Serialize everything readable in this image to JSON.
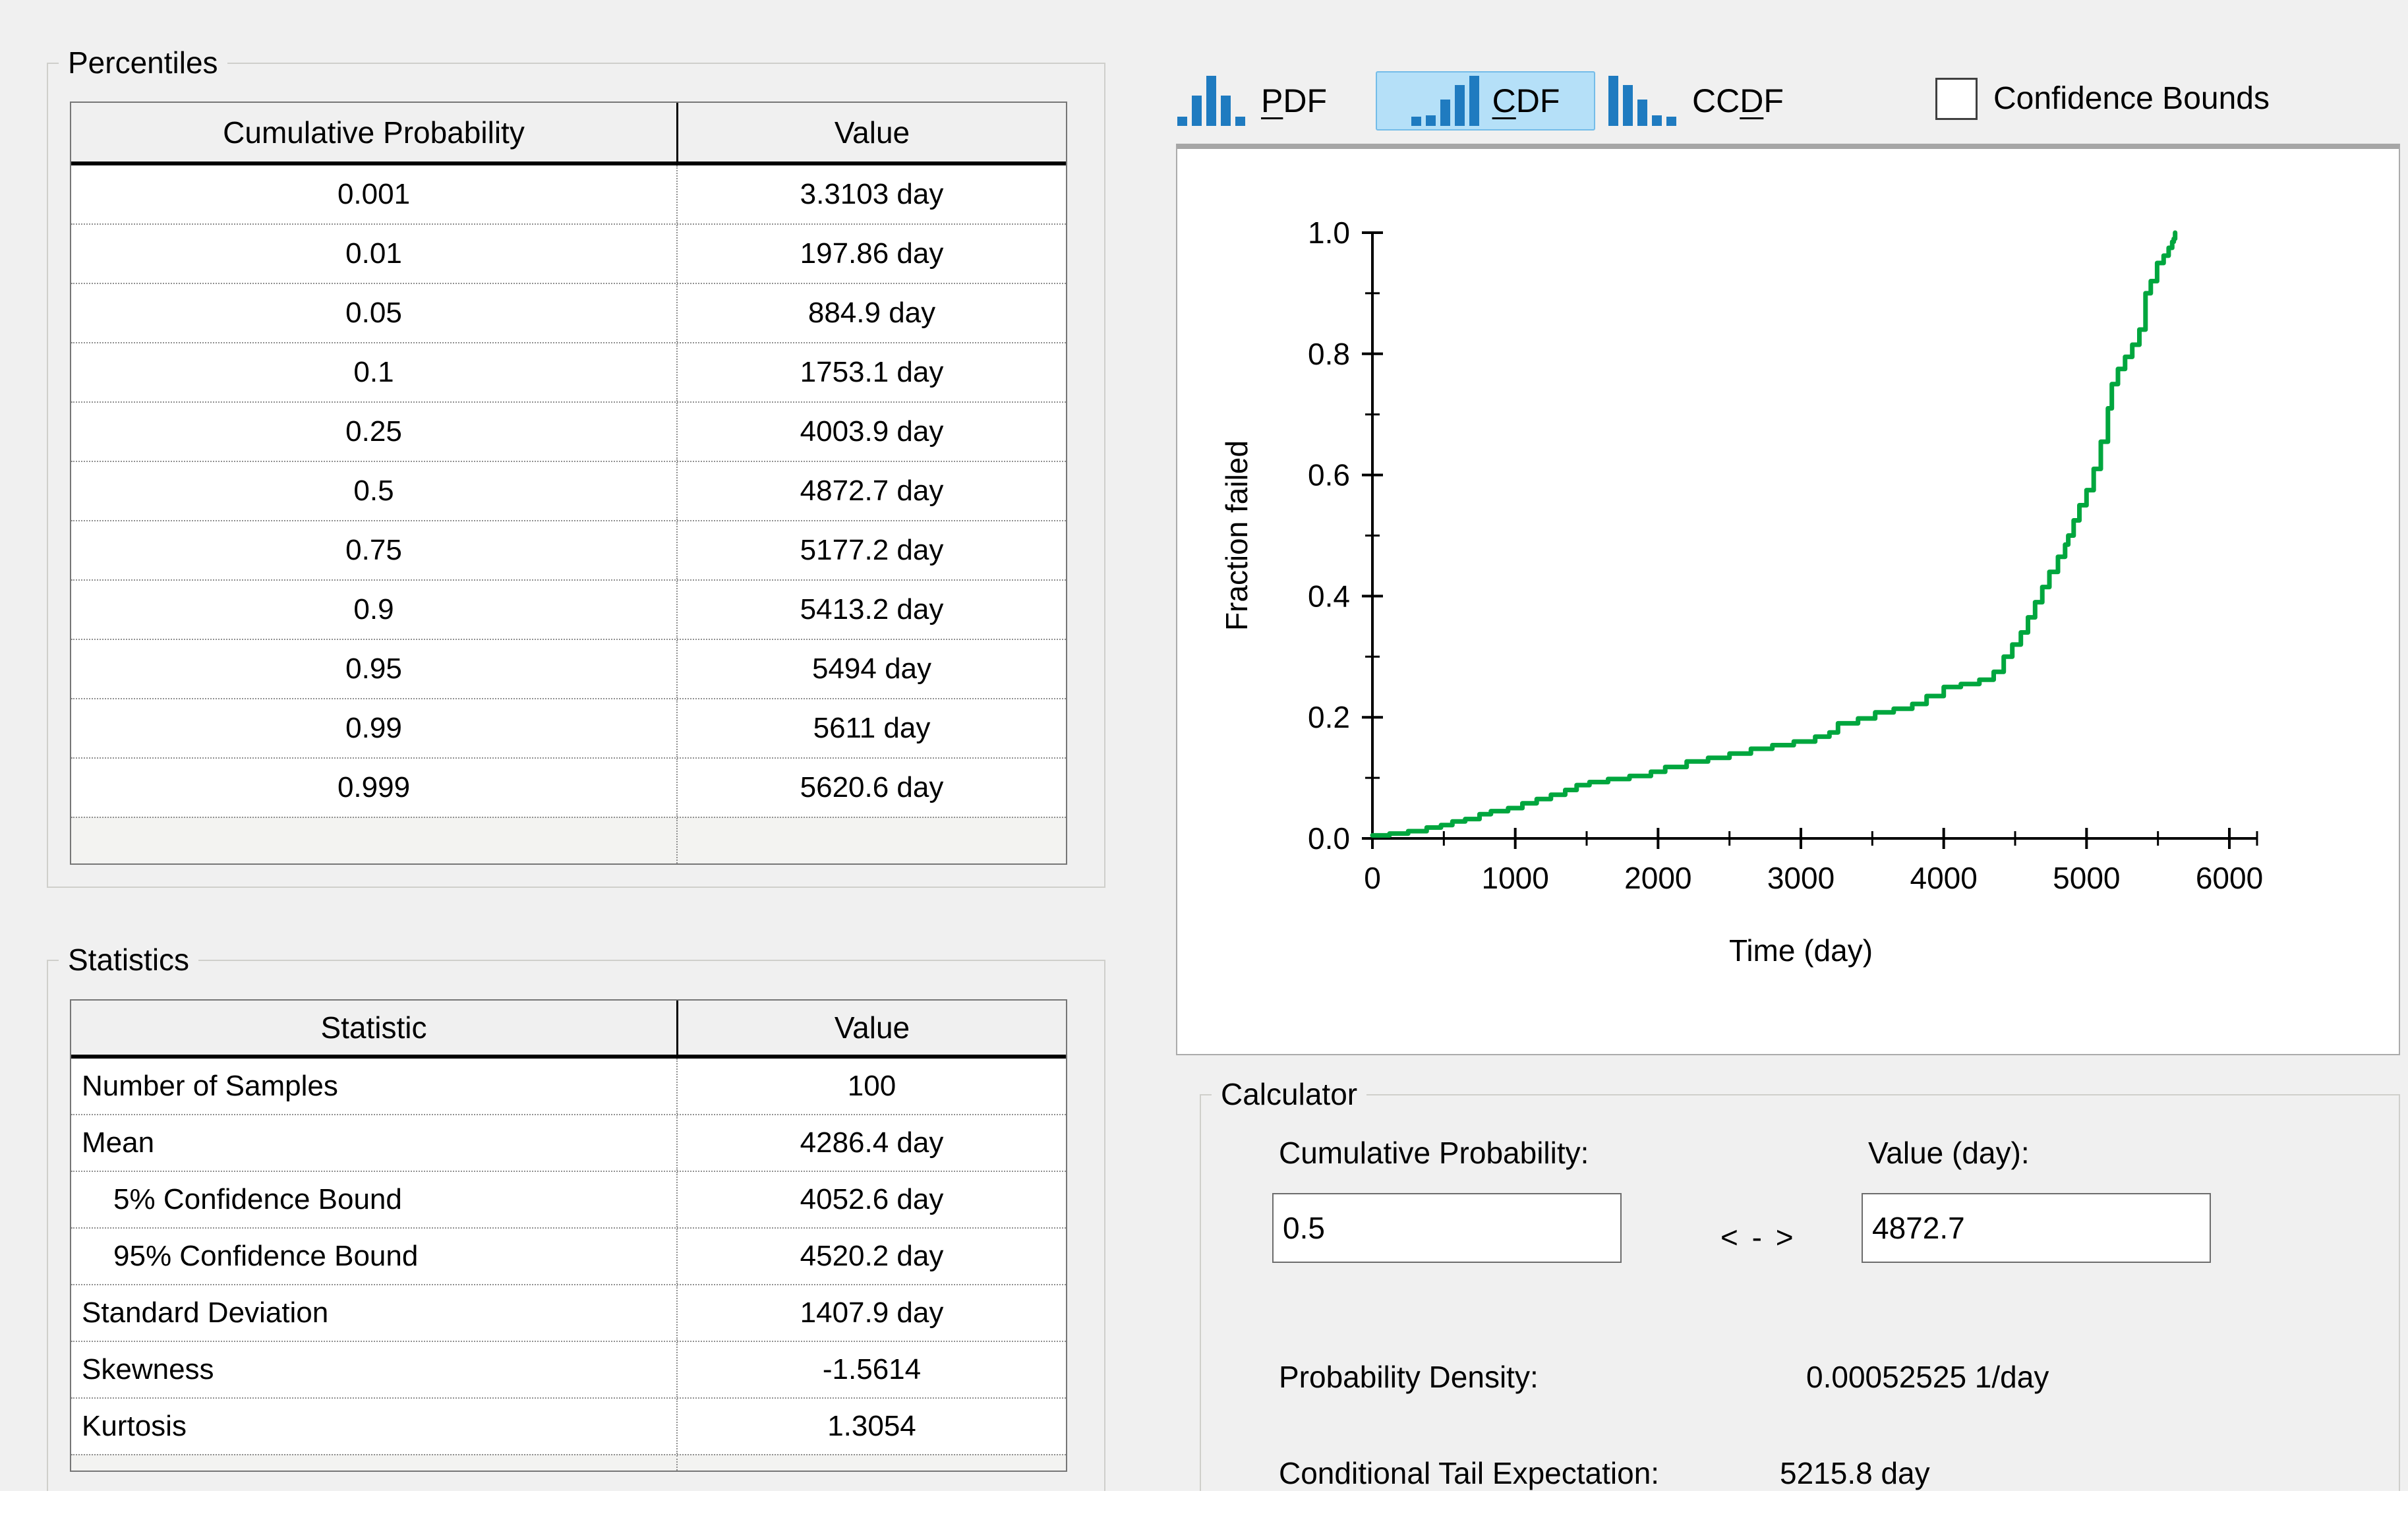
{
  "percentiles": {
    "group_label": "Percentiles",
    "col_headers": [
      "Cumulative Probability",
      "Value"
    ],
    "rows": [
      {
        "p": "0.001",
        "value": "3.3103 day"
      },
      {
        "p": "0.01",
        "value": "197.86 day"
      },
      {
        "p": "0.05",
        "value": "884.9 day"
      },
      {
        "p": "0.1",
        "value": "1753.1 day"
      },
      {
        "p": "0.25",
        "value": "4003.9 day"
      },
      {
        "p": "0.5",
        "value": "4872.7 day"
      },
      {
        "p": "0.75",
        "value": "5177.2 day"
      },
      {
        "p": "0.9",
        "value": "5413.2 day"
      },
      {
        "p": "0.95",
        "value": "5494 day"
      },
      {
        "p": "0.99",
        "value": "5611 day"
      },
      {
        "p": "0.999",
        "value": "5620.6 day"
      }
    ]
  },
  "statistics": {
    "group_label": "Statistics",
    "col_headers": [
      "Statistic",
      "Value"
    ],
    "rows": [
      {
        "name": "Number of Samples",
        "value": "100"
      },
      {
        "name": "Mean",
        "value": "4286.4 day"
      },
      {
        "name": "5% Confidence Bound",
        "value": "4052.6 day"
      },
      {
        "name": "95% Confidence Bound",
        "value": "4520.2 day"
      },
      {
        "name": "Standard Deviation",
        "value": "1407.9 day"
      },
      {
        "name": "Skewness",
        "value": "-1.5614"
      },
      {
        "name": "Kurtosis",
        "value": "1.3054"
      }
    ]
  },
  "toolbar": {
    "selected": "CDF",
    "pdf": {
      "pre": "",
      "u": "P",
      "post": "DF"
    },
    "cdf": {
      "pre": "",
      "u": "C",
      "post": "DF"
    },
    "ccdf": {
      "pre": "CC",
      "u": "D",
      "post": "F"
    },
    "confidence_label": "Confidence Bounds",
    "confidence_checked": false,
    "icon_color": "#1f7bc0",
    "selected_bg": "#b5e0f8"
  },
  "chart_data": {
    "type": "line",
    "title": "",
    "xlabel": "Time (day)",
    "ylabel": "Fraction failed",
    "xlim": [
      0,
      6000
    ],
    "ylim": [
      0,
      1
    ],
    "xticks": [
      0,
      1000,
      2000,
      3000,
      4000,
      5000,
      6000
    ],
    "xticks_minor": [
      500,
      1500,
      2500,
      3500,
      4500,
      5500
    ],
    "yticks": [
      "0.0",
      "0.2",
      "0.4",
      "0.6",
      "0.8",
      "1.0"
    ],
    "yticks_minor": [
      0.1,
      0.3,
      0.5,
      0.7,
      0.9
    ],
    "grid": false,
    "legend": "none",
    "line_color": "#00a63e",
    "series": [
      {
        "name": "CDF",
        "points": [
          [
            0,
            0.005
          ],
          [
            120,
            0.008
          ],
          [
            250,
            0.012
          ],
          [
            380,
            0.018
          ],
          [
            480,
            0.022
          ],
          [
            560,
            0.028
          ],
          [
            650,
            0.032
          ],
          [
            750,
            0.04
          ],
          [
            830,
            0.045
          ],
          [
            950,
            0.05
          ],
          [
            1050,
            0.058
          ],
          [
            1150,
            0.065
          ],
          [
            1250,
            0.072
          ],
          [
            1350,
            0.08
          ],
          [
            1430,
            0.088
          ],
          [
            1520,
            0.093
          ],
          [
            1650,
            0.098
          ],
          [
            1800,
            0.103
          ],
          [
            1950,
            0.11
          ],
          [
            2050,
            0.118
          ],
          [
            2200,
            0.127
          ],
          [
            2350,
            0.133
          ],
          [
            2500,
            0.14
          ],
          [
            2650,
            0.148
          ],
          [
            2800,
            0.154
          ],
          [
            2950,
            0.16
          ],
          [
            3100,
            0.168
          ],
          [
            3200,
            0.175
          ],
          [
            3260,
            0.19
          ],
          [
            3400,
            0.198
          ],
          [
            3520,
            0.208
          ],
          [
            3650,
            0.214
          ],
          [
            3780,
            0.222
          ],
          [
            3880,
            0.235
          ],
          [
            4000,
            0.25
          ],
          [
            4120,
            0.255
          ],
          [
            4250,
            0.262
          ],
          [
            4350,
            0.275
          ],
          [
            4420,
            0.3
          ],
          [
            4480,
            0.32
          ],
          [
            4540,
            0.34
          ],
          [
            4590,
            0.365
          ],
          [
            4640,
            0.39
          ],
          [
            4690,
            0.415
          ],
          [
            4740,
            0.44
          ],
          [
            4800,
            0.465
          ],
          [
            4850,
            0.485
          ],
          [
            4872,
            0.5
          ],
          [
            4910,
            0.525
          ],
          [
            4950,
            0.55
          ],
          [
            5000,
            0.575
          ],
          [
            5050,
            0.61
          ],
          [
            5100,
            0.655
          ],
          [
            5150,
            0.71
          ],
          [
            5177,
            0.75
          ],
          [
            5220,
            0.775
          ],
          [
            5270,
            0.795
          ],
          [
            5320,
            0.815
          ],
          [
            5370,
            0.84
          ],
          [
            5413,
            0.9
          ],
          [
            5450,
            0.92
          ],
          [
            5494,
            0.95
          ],
          [
            5540,
            0.962
          ],
          [
            5575,
            0.975
          ],
          [
            5600,
            0.985
          ],
          [
            5611,
            0.99
          ],
          [
            5620,
            1.0
          ]
        ]
      }
    ]
  },
  "calculator": {
    "group_label": "Calculator",
    "cumulative_probability_label": "Cumulative Probability:",
    "cumulative_probability_value": "0.5",
    "exchange_label": "< - >",
    "value_label": "Value (day):",
    "value_value": "4872.7",
    "probability_density_label": "Probability Density:",
    "probability_density_value": "0.00052525 1/day",
    "cte_label": "Conditional Tail Expectation:",
    "cte_value": "5215.8 day"
  }
}
